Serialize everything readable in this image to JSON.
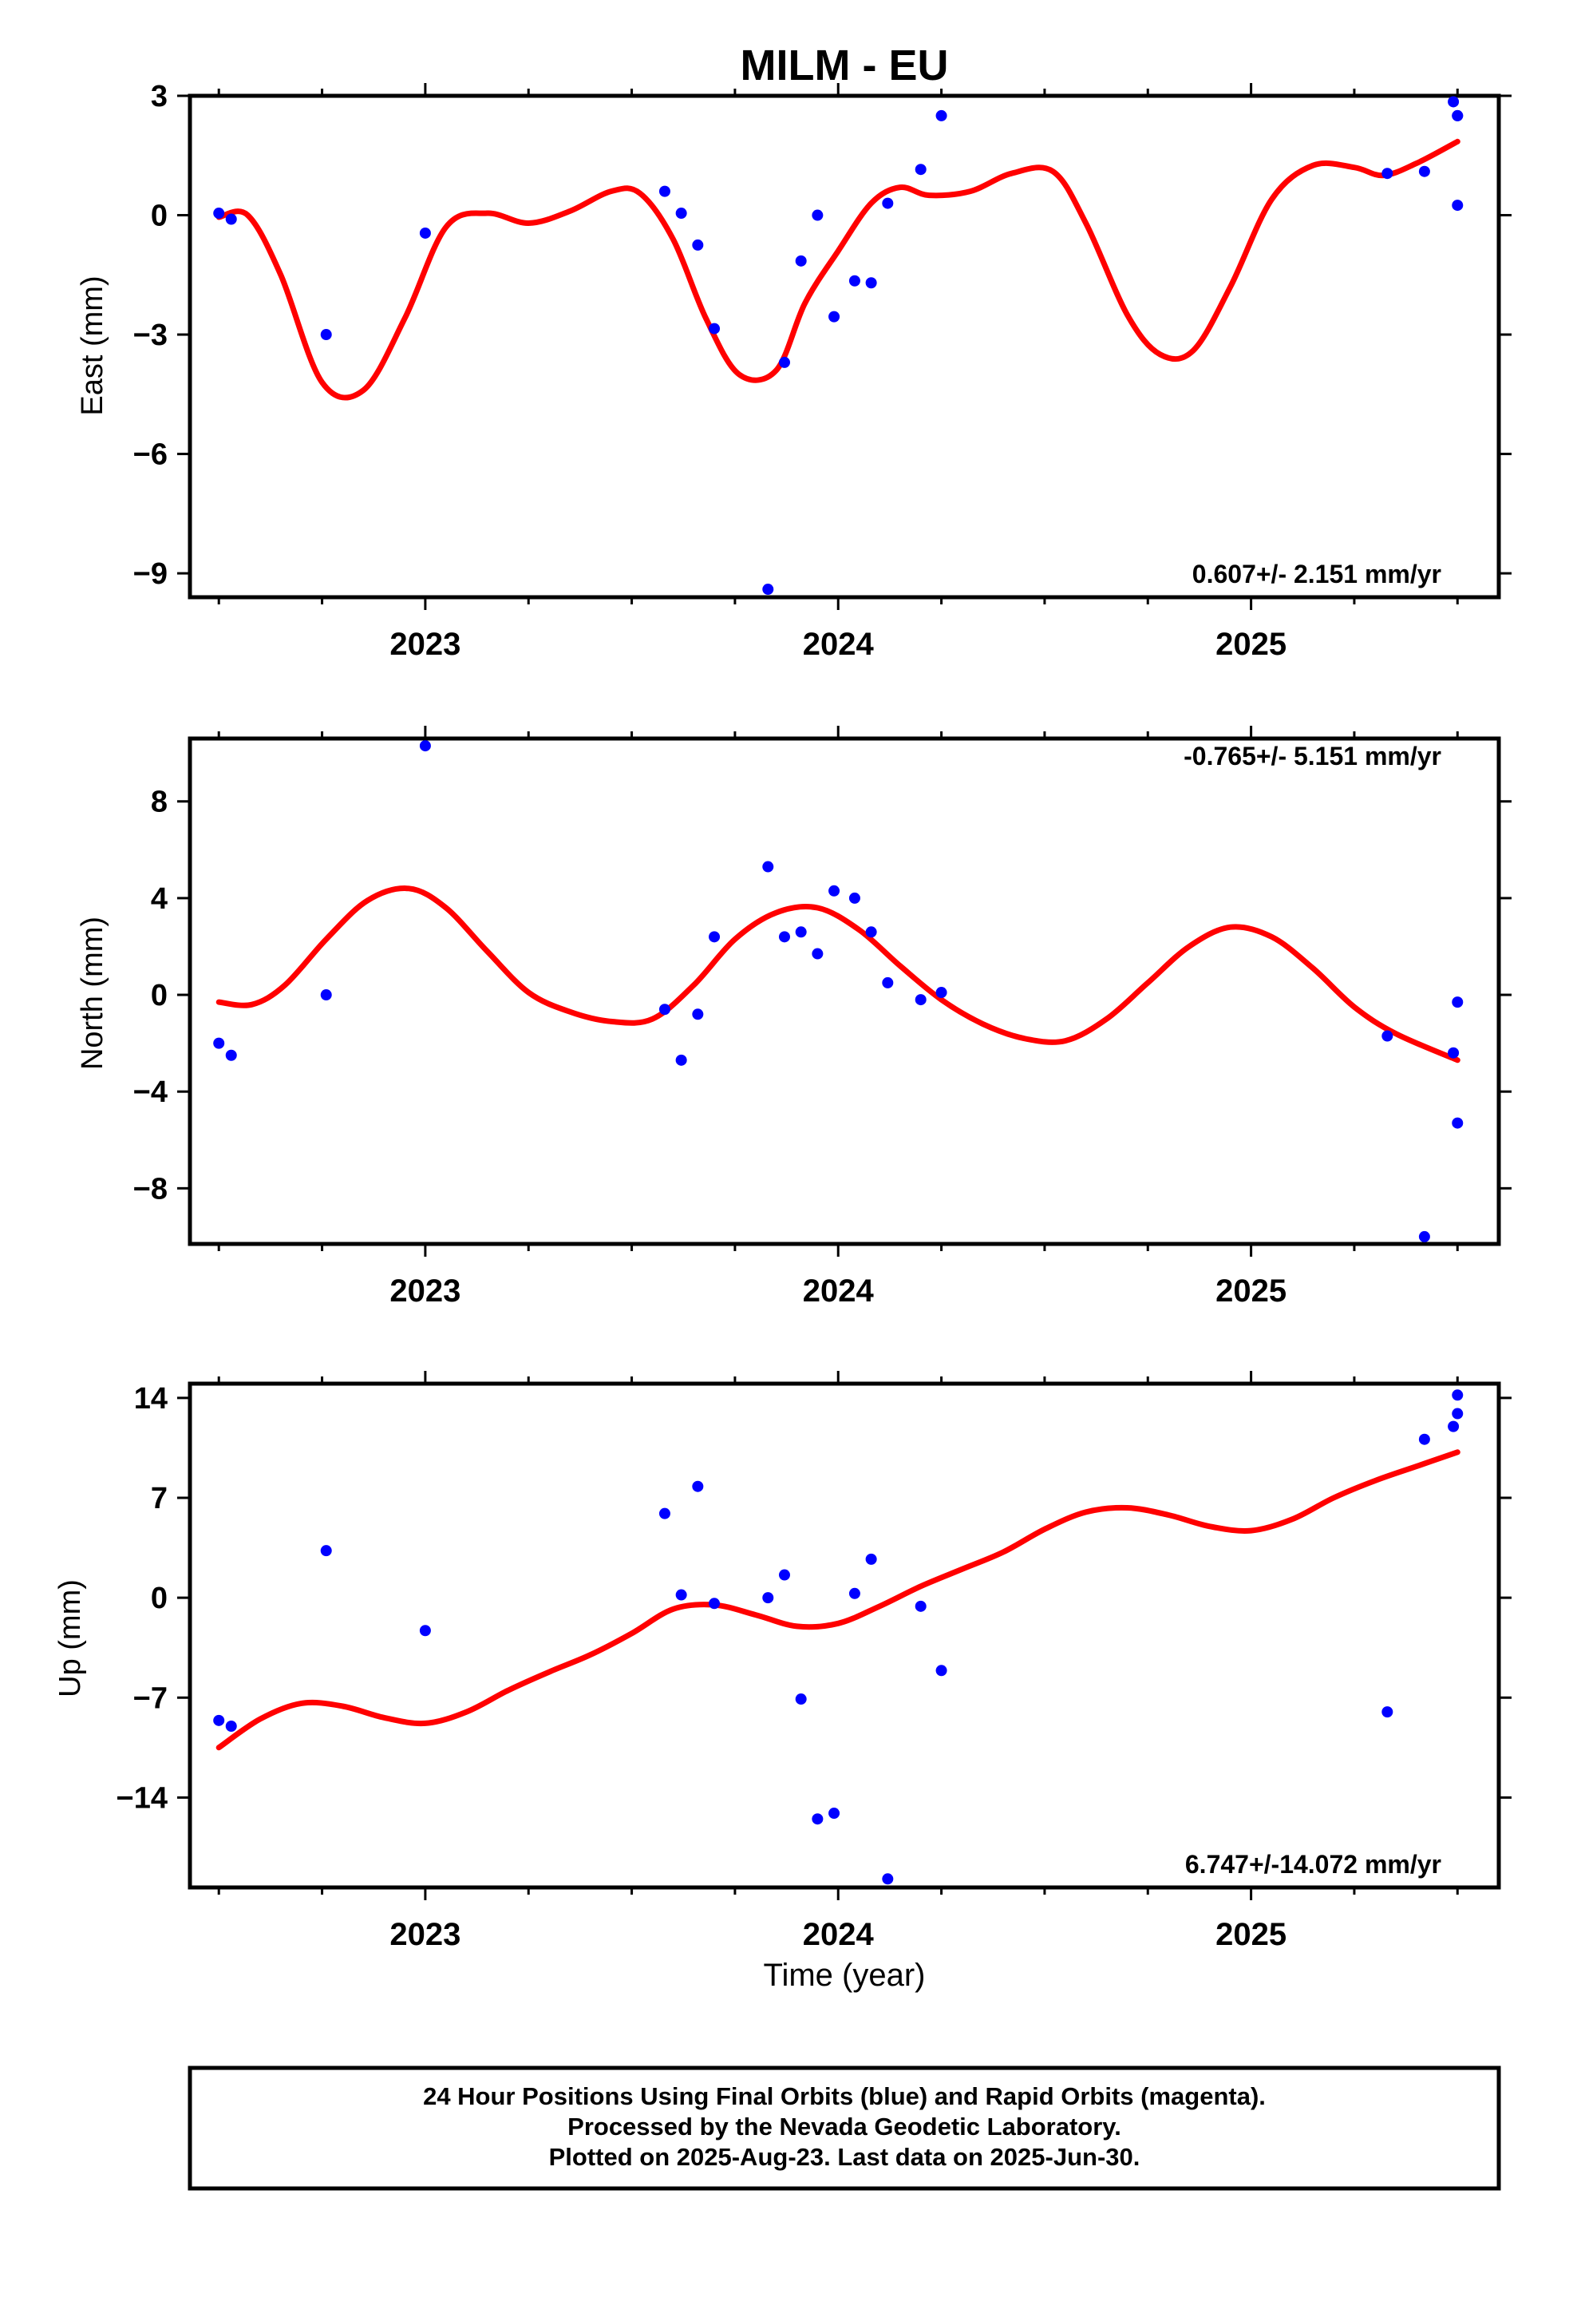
{
  "figure": {
    "title": "MILM - EU",
    "xlabel": "Time (year)",
    "caption_lines": [
      "24 Hour Positions Using Final Orbits (blue) and Rapid Orbits (magenta).",
      "Processed by the Nevada Geodetic Laboratory.",
      "Plotted on 2025-Aug-23. Last data on 2025-Jun-30."
    ]
  },
  "colors": {
    "points": "#0000ff",
    "fit": "#ff0000",
    "frame": "#000000"
  },
  "chart_data": [
    {
      "type": "scatter",
      "panel": "east",
      "ylabel": "East (mm)",
      "rate": "0.607+/- 2.151 mm/yr",
      "xlim": [
        2022.43,
        2025.6
      ],
      "ylim": [
        -9.6,
        3.0
      ],
      "yticks": [
        3,
        0,
        -3,
        -6,
        -9
      ],
      "xticks": [
        2023,
        2024,
        2025
      ],
      "points": {
        "x": [
          2022.5,
          2022.53,
          2022.76,
          2023.0,
          2023.58,
          2023.62,
          2023.66,
          2023.7,
          2023.83,
          2023.87,
          2023.91,
          2023.95,
          2023.99,
          2024.04,
          2024.08,
          2024.12,
          2024.2,
          2024.25,
          2025.33,
          2025.42,
          2025.49,
          2025.5,
          2025.5,
          2025.5
        ],
        "y": [
          0.05,
          -0.1,
          -3.0,
          -0.45,
          0.6,
          0.05,
          -0.75,
          -2.85,
          -9.4,
          -3.7,
          -1.15,
          0.0,
          -2.55,
          -1.65,
          -1.7,
          0.3,
          1.15,
          2.5,
          1.05,
          1.1,
          2.85,
          2.5,
          0.25,
          2.5
        ]
      },
      "fit": {
        "x": [
          2022.5,
          2022.57,
          2022.65,
          2022.75,
          2022.85,
          2022.95,
          2023.05,
          2023.15,
          2023.25,
          2023.35,
          2023.45,
          2023.52,
          2023.6,
          2023.68,
          2023.76,
          2023.85,
          2023.92,
          2024.0,
          2024.08,
          2024.15,
          2024.22,
          2024.32,
          2024.42,
          2024.52,
          2024.6,
          2024.7,
          2024.78,
          2024.86,
          2024.95,
          2025.05,
          2025.15,
          2025.25,
          2025.32,
          2025.4,
          2025.5
        ],
        "y": [
          -0.05,
          0.0,
          -1.5,
          -4.2,
          -4.4,
          -2.6,
          -0.3,
          0.05,
          -0.2,
          0.1,
          0.6,
          0.55,
          -0.6,
          -2.6,
          -4.0,
          -3.9,
          -2.2,
          -0.9,
          0.3,
          0.7,
          0.5,
          0.6,
          1.05,
          1.1,
          -0.2,
          -2.5,
          -3.5,
          -3.4,
          -1.8,
          0.4,
          1.25,
          1.2,
          1.0,
          1.3,
          1.85
        ]
      }
    },
    {
      "type": "scatter",
      "panel": "north",
      "ylabel": "North (mm)",
      "rate": "-0.765+/- 5.151 mm/yr",
      "xlim": [
        2022.43,
        2025.6
      ],
      "ylim": [
        -10.3,
        10.6
      ],
      "yticks": [
        8,
        4,
        0,
        -4,
        -8
      ],
      "xticks": [
        2023,
        2024,
        2025
      ],
      "points": {
        "x": [
          2022.5,
          2022.53,
          2022.76,
          2023.0,
          2023.58,
          2023.62,
          2023.66,
          2023.7,
          2023.83,
          2023.87,
          2023.91,
          2023.95,
          2023.99,
          2024.04,
          2024.08,
          2024.12,
          2024.2,
          2024.25,
          2025.33,
          2025.42,
          2025.49,
          2025.5,
          2025.5
        ],
        "y": [
          -2.0,
          -2.5,
          0.0,
          10.3,
          -0.6,
          -2.7,
          -0.8,
          2.4,
          5.3,
          2.4,
          2.6,
          1.7,
          4.3,
          4.0,
          2.6,
          0.5,
          -0.2,
          0.1,
          -1.7,
          -10.0,
          -2.4,
          -0.3,
          -5.3
        ]
      },
      "fit": {
        "x": [
          2022.5,
          2022.58,
          2022.66,
          2022.76,
          2022.86,
          2022.96,
          2023.05,
          2023.15,
          2023.25,
          2023.35,
          2023.45,
          2023.55,
          2023.65,
          2023.75,
          2023.85,
          2023.95,
          2024.05,
          2024.15,
          2024.25,
          2024.35,
          2024.45,
          2024.55,
          2024.65,
          2024.75,
          2024.85,
          2024.95,
          2025.05,
          2025.15,
          2025.25,
          2025.35,
          2025.5
        ],
        "y": [
          -0.3,
          -0.4,
          0.4,
          2.3,
          3.9,
          4.4,
          3.6,
          1.8,
          0.1,
          -0.7,
          -1.1,
          -1.0,
          0.4,
          2.3,
          3.4,
          3.6,
          2.7,
          1.2,
          -0.2,
          -1.2,
          -1.8,
          -1.9,
          -1.0,
          0.5,
          2.0,
          2.8,
          2.4,
          1.1,
          -0.5,
          -1.6,
          -2.7
        ]
      }
    },
    {
      "type": "scatter",
      "panel": "up",
      "ylabel": "Up (mm)",
      "rate": "6.747+/-14.072 mm/yr",
      "xlim": [
        2022.43,
        2025.6
      ],
      "ylim": [
        -20.3,
        15.0
      ],
      "yticks": [
        14,
        7,
        0,
        -7,
        -14
      ],
      "xticks": [
        2023,
        2024,
        2025
      ],
      "points": {
        "x": [
          2022.5,
          2022.53,
          2022.76,
          2023.0,
          2023.58,
          2023.62,
          2023.66,
          2023.7,
          2023.83,
          2023.87,
          2023.91,
          2023.95,
          2023.99,
          2024.04,
          2024.08,
          2024.12,
          2024.2,
          2024.25,
          2025.33,
          2025.42,
          2025.49,
          2025.5,
          2025.5
        ],
        "y": [
          -8.6,
          -9.0,
          3.3,
          -2.3,
          5.9,
          0.2,
          7.8,
          -0.4,
          0.0,
          1.6,
          -7.1,
          -15.5,
          -15.1,
          0.3,
          2.7,
          -19.7,
          -0.6,
          -5.1,
          -8.0,
          11.1,
          12.0,
          12.9,
          14.2
        ]
      },
      "fit": {
        "x": [
          2022.5,
          2022.6,
          2022.7,
          2022.8,
          2022.9,
          2023.0,
          2023.1,
          2023.2,
          2023.3,
          2023.4,
          2023.5,
          2023.6,
          2023.7,
          2023.8,
          2023.9,
          2024.0,
          2024.1,
          2024.2,
          2024.3,
          2024.4,
          2024.5,
          2024.6,
          2024.7,
          2024.8,
          2024.9,
          2025.0,
          2025.1,
          2025.2,
          2025.3,
          2025.4,
          2025.5
        ],
        "y": [
          -10.5,
          -8.5,
          -7.4,
          -7.6,
          -8.4,
          -8.8,
          -8.0,
          -6.5,
          -5.2,
          -4.0,
          -2.5,
          -0.8,
          -0.5,
          -1.2,
          -2.0,
          -1.8,
          -0.6,
          0.8,
          2.0,
          3.2,
          4.8,
          6.0,
          6.3,
          5.8,
          5.0,
          4.7,
          5.5,
          7.0,
          8.2,
          9.2,
          10.2
        ]
      }
    }
  ]
}
